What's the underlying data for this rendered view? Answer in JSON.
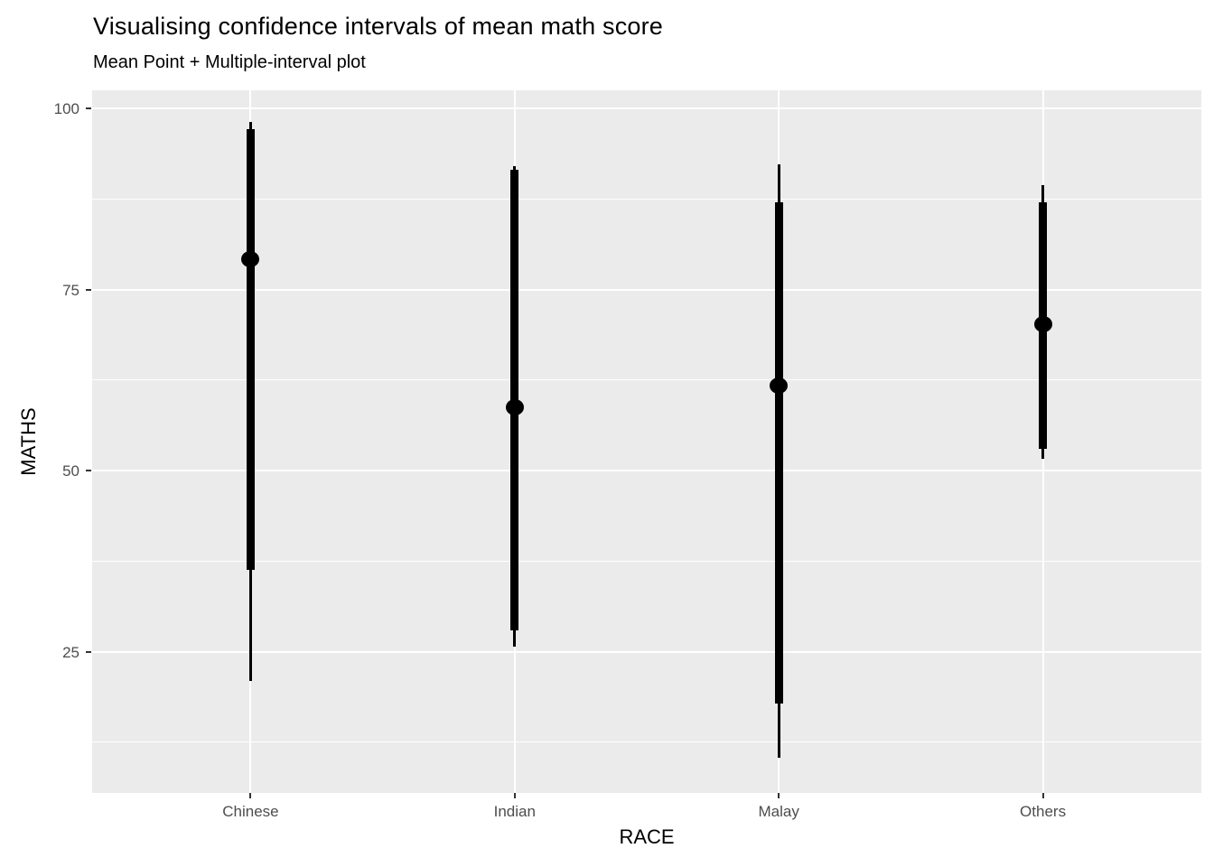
{
  "chart_data": {
    "type": "pointinterval",
    "title": "Visualising confidence intervals of mean math score",
    "subtitle": "Mean Point + Multiple-interval plot",
    "xlabel": "RACE",
    "ylabel": "MATHS",
    "categories": [
      "Chinese",
      "Indian",
      "Malay",
      "Others"
    ],
    "series": [
      {
        "name": "Chinese",
        "mean": 79.2,
        "thick_interval": [
          36.3,
          97.1
        ],
        "thin_interval": [
          21.0,
          98.1
        ]
      },
      {
        "name": "Indian",
        "mean": 58.7,
        "thick_interval": [
          28.0,
          91.5
        ],
        "thin_interval": [
          25.7,
          92.0
        ]
      },
      {
        "name": "Malay",
        "mean": 61.7,
        "thick_interval": [
          17.8,
          87.0
        ],
        "thin_interval": [
          10.4,
          92.3
        ]
      },
      {
        "name": "Others",
        "mean": 70.2,
        "thick_interval": [
          53.0,
          87.1
        ],
        "thin_interval": [
          51.6,
          89.4
        ]
      }
    ],
    "ylim": [
      5.5,
      102.5
    ],
    "yticks": [
      25,
      50,
      75,
      100
    ],
    "yticks_minor": [
      12.5,
      37.5,
      62.5,
      87.5
    ],
    "grid": "on",
    "legend": "none",
    "colors": {
      "panel_background": "#EBEBEB",
      "gridline": "#FFFFFF",
      "data": "#000000",
      "tick_label": "#4D4D4D",
      "tick_mark": "#333333",
      "title_text": "#000000"
    }
  }
}
